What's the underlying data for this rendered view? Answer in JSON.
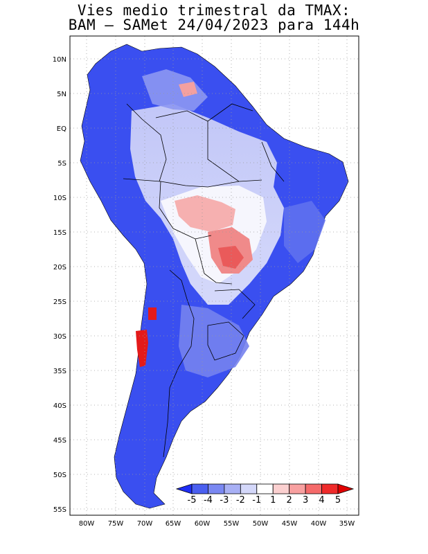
{
  "title": {
    "line1": "Vies medio trimestral da TMAX:",
    "line2": "BAM – SAMet 24/04/2023  para 144h"
  },
  "map": {
    "region": "South America",
    "lon_range": [
      -83,
      -35
    ],
    "lat_range": [
      -56,
      13
    ],
    "x_ticks": [
      "80W",
      "75W",
      "70W",
      "65W",
      "60W",
      "55W",
      "50W",
      "45W",
      "40W",
      "35W"
    ],
    "y_ticks": [
      "10N",
      "5N",
      "EQ",
      "5S",
      "10S",
      "15S",
      "20S",
      "25S",
      "30S",
      "35S",
      "40S",
      "45S",
      "50S",
      "55S"
    ],
    "grid": "dotted",
    "land_color_dominant": "#3050e8",
    "ocean_color": "#ffffff"
  },
  "colorbar": {
    "labels": [
      "-5",
      "-4",
      "-3",
      "-2",
      "-1",
      "1",
      "2",
      "3",
      "4",
      "5"
    ],
    "colors": [
      "#1f2ef5",
      "#4a5ff0",
      "#7a88f2",
      "#a8b0f5",
      "#d4d8fa",
      "#ffffff",
      "#fbd0d0",
      "#f8a0a0",
      "#f56a6a",
      "#ef2a2a",
      "#e00000"
    ]
  }
}
